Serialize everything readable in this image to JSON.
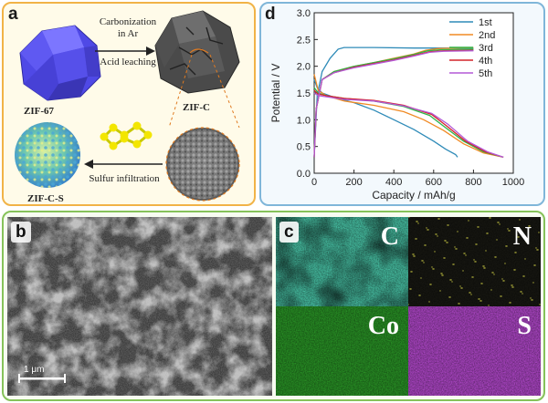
{
  "panel_a": {
    "label": "a",
    "zif67": "ZIF-67",
    "zifc": "ZIF-C",
    "zifcs": "ZIF-C-S",
    "carbonization": "Carbonization",
    "in_ar": "in Ar",
    "acid_leaching": "Acid leaching",
    "sulfur_infiltration": "Sulfur infiltration",
    "colors": {
      "crystal": "#5b55f0",
      "border": "#f1b347"
    }
  },
  "panel_b": {
    "label": "b",
    "scale_bar": "1 μm"
  },
  "panel_c": {
    "label": "c",
    "maps": [
      {
        "element": "C",
        "color": "#4fd6b6"
      },
      {
        "element": "N",
        "color": "#1a1a14"
      },
      {
        "element": "Co",
        "color": "#2ea52a"
      },
      {
        "element": "S",
        "color": "#c44fe0"
      }
    ]
  },
  "panel_d": {
    "label": "d",
    "chart_data": {
      "type": "line",
      "xlabel": "Capacity / mAh/g",
      "ylabel": "Potential / V",
      "xlim": [
        0,
        1000
      ],
      "ylim": [
        0,
        3.0
      ],
      "xticks": [
        0,
        200,
        400,
        600,
        800,
        1000
      ],
      "yticks": [
        0.0,
        0.5,
        1.0,
        1.5,
        2.0,
        2.5,
        3.0
      ],
      "legend_position": "top-right",
      "series": [
        {
          "name": "1st",
          "color": "#2f8bb8",
          "discharge": [
            [
              0,
              1.75
            ],
            [
              15,
              1.6
            ],
            [
              40,
              1.5
            ],
            [
              100,
              1.42
            ],
            [
              200,
              1.32
            ],
            [
              300,
              1.18
            ],
            [
              400,
              1.0
            ],
            [
              500,
              0.82
            ],
            [
              600,
              0.6
            ],
            [
              660,
              0.45
            ],
            [
              710,
              0.35
            ],
            [
              720,
              0.3
            ]
          ],
          "charge": [
            [
              0,
              0.3
            ],
            [
              15,
              1.45
            ],
            [
              40,
              1.9
            ],
            [
              80,
              2.15
            ],
            [
              120,
              2.32
            ],
            [
              150,
              2.35
            ],
            [
              300,
              2.35
            ],
            [
              500,
              2.34
            ],
            [
              700,
              2.34
            ],
            [
              800,
              2.34
            ]
          ]
        },
        {
          "name": "2nd",
          "color": "#f08a24",
          "discharge": [
            [
              0,
              1.85
            ],
            [
              20,
              1.55
            ],
            [
              60,
              1.45
            ],
            [
              150,
              1.35
            ],
            [
              300,
              1.27
            ],
            [
              450,
              1.15
            ],
            [
              550,
              1.0
            ],
            [
              650,
              0.8
            ],
            [
              750,
              0.55
            ],
            [
              850,
              0.38
            ],
            [
              950,
              0.3
            ]
          ],
          "charge": [
            [
              0,
              0.3
            ],
            [
              10,
              1.2
            ],
            [
              40,
              1.75
            ],
            [
              100,
              1.9
            ],
            [
              200,
              2.0
            ],
            [
              300,
              2.07
            ],
            [
              400,
              2.15
            ],
            [
              500,
              2.23
            ],
            [
              560,
              2.3
            ],
            [
              620,
              2.33
            ],
            [
              800,
              2.35
            ]
          ]
        },
        {
          "name": "3rd",
          "color": "#2db54a",
          "discharge": [
            [
              0,
              1.6
            ],
            [
              20,
              1.5
            ],
            [
              60,
              1.45
            ],
            [
              150,
              1.4
            ],
            [
              300,
              1.35
            ],
            [
              450,
              1.25
            ],
            [
              580,
              1.08
            ],
            [
              650,
              0.88
            ],
            [
              750,
              0.6
            ],
            [
              850,
              0.4
            ],
            [
              950,
              0.3
            ]
          ],
          "charge": [
            [
              0,
              0.3
            ],
            [
              10,
              1.2
            ],
            [
              40,
              1.75
            ],
            [
              100,
              1.9
            ],
            [
              200,
              2.0
            ],
            [
              300,
              2.07
            ],
            [
              400,
              2.14
            ],
            [
              500,
              2.22
            ],
            [
              570,
              2.29
            ],
            [
              640,
              2.31
            ],
            [
              800,
              2.32
            ]
          ]
        },
        {
          "name": "4th",
          "color": "#d4232a",
          "discharge": [
            [
              0,
              1.55
            ],
            [
              20,
              1.48
            ],
            [
              60,
              1.45
            ],
            [
              150,
              1.4
            ],
            [
              300,
              1.36
            ],
            [
              450,
              1.27
            ],
            [
              590,
              1.1
            ],
            [
              660,
              0.9
            ],
            [
              760,
              0.6
            ],
            [
              860,
              0.4
            ],
            [
              950,
              0.3
            ]
          ],
          "charge": [
            [
              0,
              0.3
            ],
            [
              10,
              1.2
            ],
            [
              40,
              1.75
            ],
            [
              100,
              1.88
            ],
            [
              200,
              1.98
            ],
            [
              300,
              2.05
            ],
            [
              400,
              2.12
            ],
            [
              500,
              2.2
            ],
            [
              580,
              2.27
            ],
            [
              650,
              2.29
            ],
            [
              800,
              2.3
            ]
          ]
        },
        {
          "name": "5th",
          "color": "#b359d6",
          "discharge": [
            [
              0,
              1.5
            ],
            [
              20,
              1.45
            ],
            [
              60,
              1.43
            ],
            [
              150,
              1.38
            ],
            [
              300,
              1.35
            ],
            [
              450,
              1.26
            ],
            [
              590,
              1.12
            ],
            [
              670,
              0.92
            ],
            [
              770,
              0.6
            ],
            [
              870,
              0.4
            ],
            [
              950,
              0.3
            ]
          ],
          "charge": [
            [
              0,
              0.3
            ],
            [
              10,
              1.2
            ],
            [
              40,
              1.75
            ],
            [
              100,
              1.88
            ],
            [
              200,
              1.97
            ],
            [
              300,
              2.04
            ],
            [
              400,
              2.11
            ],
            [
              500,
              2.19
            ],
            [
              580,
              2.26
            ],
            [
              650,
              2.28
            ],
            [
              800,
              2.29
            ]
          ]
        }
      ]
    }
  }
}
